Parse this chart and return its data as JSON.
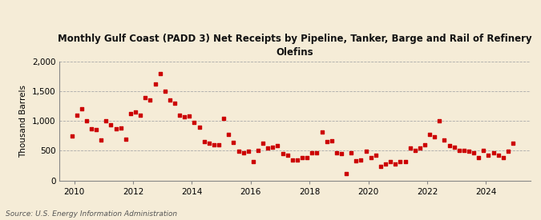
{
  "title": "Monthly Gulf Coast (PADD 3) Net Receipts by Pipeline, Tanker, Barge and Rail of Refinery\nOlefins",
  "ylabel": "Thousand Barrels",
  "source": "Source: U.S. Energy Information Administration",
  "background_color": "#f5ecd7",
  "plot_bg_color": "#f5ecd7",
  "marker_color": "#cc0000",
  "ylim": [
    0,
    2000
  ],
  "yticks": [
    0,
    500,
    1000,
    1500,
    2000
  ],
  "xlim_start": 2009.5,
  "xlim_end": 2025.5,
  "xticks": [
    2010,
    2012,
    2014,
    2016,
    2018,
    2020,
    2022,
    2024
  ],
  "data": [
    [
      2009.917,
      750
    ],
    [
      2010.083,
      1100
    ],
    [
      2010.25,
      1200
    ],
    [
      2010.417,
      1000
    ],
    [
      2010.583,
      870
    ],
    [
      2010.75,
      850
    ],
    [
      2010.917,
      680
    ],
    [
      2011.083,
      1000
    ],
    [
      2011.25,
      940
    ],
    [
      2011.417,
      870
    ],
    [
      2011.583,
      880
    ],
    [
      2011.75,
      700
    ],
    [
      2011.917,
      1130
    ],
    [
      2012.083,
      1150
    ],
    [
      2012.25,
      1100
    ],
    [
      2012.417,
      1400
    ],
    [
      2012.583,
      1360
    ],
    [
      2012.75,
      1620
    ],
    [
      2012.917,
      1800
    ],
    [
      2013.083,
      1500
    ],
    [
      2013.25,
      1350
    ],
    [
      2013.417,
      1300
    ],
    [
      2013.583,
      1100
    ],
    [
      2013.75,
      1070
    ],
    [
      2013.917,
      1080
    ],
    [
      2014.083,
      980
    ],
    [
      2014.25,
      900
    ],
    [
      2014.417,
      650
    ],
    [
      2014.583,
      620
    ],
    [
      2014.75,
      600
    ],
    [
      2014.917,
      600
    ],
    [
      2015.083,
      1050
    ],
    [
      2015.25,
      780
    ],
    [
      2015.417,
      640
    ],
    [
      2015.583,
      490
    ],
    [
      2015.75,
      470
    ],
    [
      2015.917,
      490
    ],
    [
      2016.083,
      310
    ],
    [
      2016.25,
      500
    ],
    [
      2016.417,
      630
    ],
    [
      2016.583,
      540
    ],
    [
      2016.75,
      560
    ],
    [
      2016.917,
      590
    ],
    [
      2017.083,
      450
    ],
    [
      2017.25,
      420
    ],
    [
      2017.417,
      350
    ],
    [
      2017.583,
      350
    ],
    [
      2017.75,
      390
    ],
    [
      2017.917,
      390
    ],
    [
      2018.083,
      470
    ],
    [
      2018.25,
      470
    ],
    [
      2018.417,
      820
    ],
    [
      2018.583,
      650
    ],
    [
      2018.75,
      660
    ],
    [
      2018.917,
      470
    ],
    [
      2019.083,
      450
    ],
    [
      2019.25,
      110
    ],
    [
      2019.417,
      460
    ],
    [
      2019.583,
      330
    ],
    [
      2019.75,
      350
    ],
    [
      2019.917,
      490
    ],
    [
      2020.083,
      380
    ],
    [
      2020.25,
      430
    ],
    [
      2020.417,
      240
    ],
    [
      2020.583,
      270
    ],
    [
      2020.75,
      310
    ],
    [
      2020.917,
      270
    ],
    [
      2021.083,
      320
    ],
    [
      2021.25,
      310
    ],
    [
      2021.417,
      550
    ],
    [
      2021.583,
      510
    ],
    [
      2021.75,
      540
    ],
    [
      2021.917,
      600
    ],
    [
      2022.083,
      770
    ],
    [
      2022.25,
      740
    ],
    [
      2022.417,
      1000
    ],
    [
      2022.583,
      680
    ],
    [
      2022.75,
      590
    ],
    [
      2022.917,
      560
    ],
    [
      2023.083,
      510
    ],
    [
      2023.25,
      500
    ],
    [
      2023.417,
      490
    ],
    [
      2023.583,
      470
    ],
    [
      2023.75,
      380
    ],
    [
      2023.917,
      510
    ],
    [
      2024.083,
      420
    ],
    [
      2024.25,
      460
    ],
    [
      2024.417,
      430
    ],
    [
      2024.583,
      390
    ],
    [
      2024.75,
      490
    ],
    [
      2024.917,
      630
    ]
  ]
}
